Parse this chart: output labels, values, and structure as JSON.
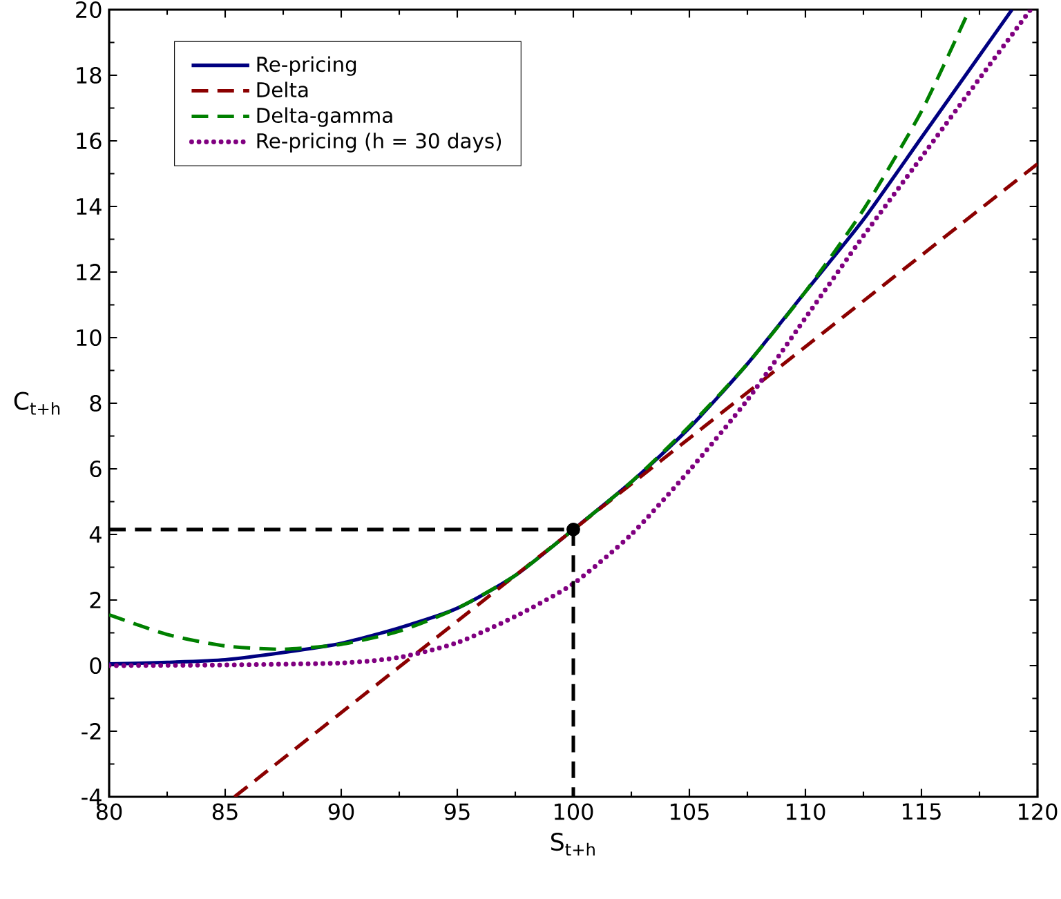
{
  "chart_data": {
    "type": "line",
    "xlabel": "S$_{t+h}$",
    "ylabel": "C$_{t+h}$",
    "xlim": [
      80,
      120
    ],
    "ylim": [
      -4,
      20
    ],
    "xticks": [
      80,
      85,
      90,
      95,
      100,
      105,
      110,
      115,
      120
    ],
    "yticks": [
      -4,
      -2,
      0,
      2,
      4,
      6,
      8,
      10,
      12,
      14,
      16,
      18,
      20
    ],
    "grid": false,
    "legend": "top left",
    "series": [
      {
        "name": "Re-pricing",
        "color": "#000080",
        "line_style": "solid",
        "x": [
          80,
          82.5,
          85,
          87.5,
          90,
          92.5,
          95,
          97.5,
          100,
          102.5,
          105,
          107.5,
          110,
          112.5,
          115,
          117.5,
          118.9
        ],
        "values": [
          0.05,
          0.1,
          0.18,
          0.4,
          0.68,
          1.15,
          1.75,
          2.75,
          4.15,
          5.6,
          7.25,
          9.2,
          11.4,
          13.6,
          16.1,
          18.6,
          20
        ]
      },
      {
        "name": "Delta",
        "color": "#8b0000",
        "line_style": "dashed",
        "x": [
          85.4,
          120
        ],
        "values": [
          -4,
          15.3
        ]
      },
      {
        "name": "Delta-gamma",
        "color": "#008000",
        "line_style": "dashed",
        "x": [
          80,
          82.5,
          85,
          87.5,
          90,
          92.5,
          95,
          97.5,
          100,
          102.5,
          105,
          107.5,
          110,
          112.5,
          115,
          117
        ],
        "values": [
          1.55,
          0.95,
          0.6,
          0.5,
          0.65,
          1.05,
          1.75,
          2.75,
          4.15,
          5.6,
          7.3,
          9.2,
          11.4,
          13.9,
          16.9,
          19.9
        ]
      },
      {
        "name": "Re-pricing (h = 30 days)",
        "color": "#800080",
        "line_style": "dotted",
        "x": [
          80,
          85,
          90,
          92.5,
          95,
          97.5,
          100,
          102.5,
          105,
          107.5,
          110,
          112.5,
          115,
          117.5,
          119.7
        ],
        "values": [
          0.0,
          0.02,
          0.08,
          0.25,
          0.7,
          1.5,
          2.5,
          4.0,
          5.95,
          8.1,
          10.6,
          13.1,
          15.5,
          17.9,
          20
        ]
      },
      {
        "type": "line",
        "color": "#000000",
        "line_style": "dashed",
        "x": [
          80,
          100,
          100
        ],
        "values": [
          4.15,
          4.15,
          -4
        ]
      },
      {
        "type": "scatter",
        "color": "#000000",
        "marker": "circle",
        "x": [
          100
        ],
        "values": [
          4.15
        ]
      }
    ]
  }
}
